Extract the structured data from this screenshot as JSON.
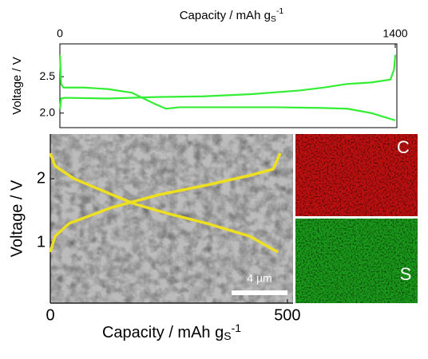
{
  "chart_data": [
    {
      "type": "line",
      "x_label": {
        "text": "Capacity / mAh g",
        "sub": "S",
        "sup": "-1"
      },
      "y_label": "Voltage / V",
      "xlim": [
        0,
        1400
      ],
      "xticks": [
        0,
        1400
      ],
      "ylim": [
        1.8,
        2.95
      ],
      "yticks": [
        {
          "value": 2.0,
          "label": "2.0"
        },
        2.5
      ],
      "series": [
        {
          "color": "#33ee33",
          "x": [
            0,
            5,
            15,
            100,
            200,
            300,
            350,
            400,
            443,
            500,
            700,
            900,
            1100,
            1200,
            1300,
            1350,
            1400
          ],
          "values": [
            2.8,
            2.4,
            2.35,
            2.35,
            2.33,
            2.28,
            2.2,
            2.12,
            2.06,
            2.08,
            2.08,
            2.08,
            2.07,
            2.06,
            2.0,
            1.95,
            1.9
          ]
        },
        {
          "color": "#33ee33",
          "x": [
            0,
            5,
            20,
            200,
            400,
            600,
            800,
            1000,
            1100,
            1200,
            1300,
            1380,
            1395,
            1400
          ],
          "values": [
            2.05,
            2.2,
            2.21,
            2.2,
            2.22,
            2.23,
            2.26,
            2.31,
            2.35,
            2.4,
            2.42,
            2.46,
            2.6,
            2.8
          ]
        }
      ]
    },
    {
      "type": "line",
      "x_label": {
        "text": "Capacity / mAh g",
        "sub": "S",
        "sup": "-1"
      },
      "y_label": "Voltage / V",
      "xlim": [
        0,
        512
      ],
      "xticks": [
        0,
        500
      ],
      "ylim": [
        0.05,
        2.7
      ],
      "yticks": [
        1,
        2
      ],
      "scale_bar": "4 µm",
      "series": [
        {
          "color": "#eee020",
          "x": [
            0,
            10,
            50,
            130,
            180,
            250,
            330,
            420,
            480
          ],
          "values": [
            2.4,
            2.2,
            2.0,
            1.75,
            1.6,
            1.45,
            1.3,
            1.1,
            0.85
          ]
        },
        {
          "color": "#eee020",
          "x": [
            0,
            10,
            40,
            130,
            230,
            330,
            420,
            470,
            485
          ],
          "values": [
            0.85,
            1.1,
            1.3,
            1.55,
            1.75,
            1.9,
            2.05,
            2.15,
            2.4
          ]
        }
      ]
    }
  ],
  "eds_maps": [
    {
      "label": "C"
    },
    {
      "label": "S"
    }
  ]
}
